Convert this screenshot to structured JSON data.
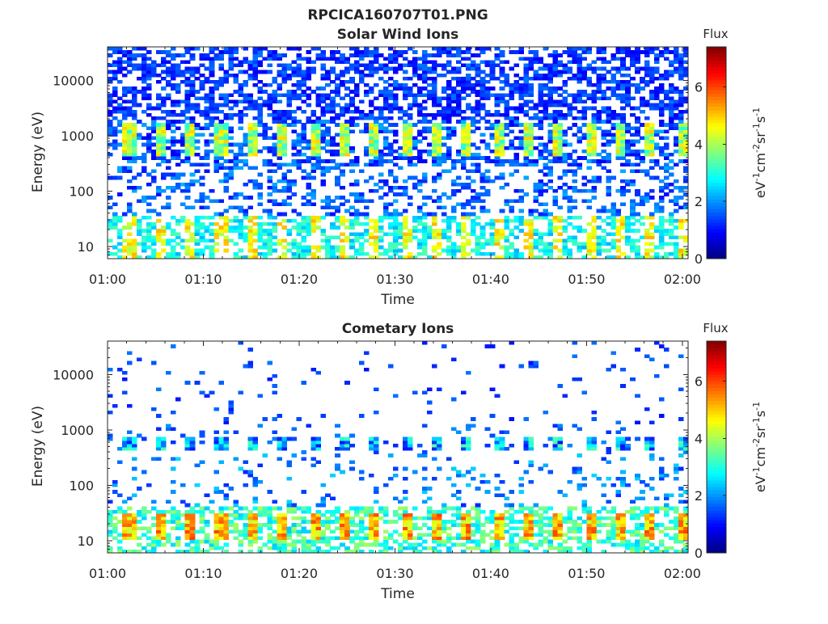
{
  "figure_title": "RPCICA160707T01.PNG",
  "chart_data": [
    {
      "type": "heatmap",
      "title": "Solar Wind Ions",
      "xlabel": "Time",
      "ylabel": "Energy (eV)",
      "x_ticks": [
        "01:00",
        "01:10",
        "01:20",
        "01:30",
        "01:40",
        "01:50",
        "02:00"
      ],
      "x_range": [
        "01:00",
        "02:00"
      ],
      "y_scale": "log",
      "y_ticks": [
        10,
        100,
        1000,
        10000
      ],
      "y_tick_labels": [
        "10",
        "100",
        "1000",
        "10000"
      ],
      "ylim": [
        6,
        40000
      ],
      "colorbar": {
        "title": "Flux",
        "label_parts": [
          "eV",
          "-1",
          "cm",
          "-2",
          "sr",
          "-1",
          "s",
          "-1"
        ],
        "range": [
          0,
          7.4
        ],
        "ticks": [
          0,
          2,
          4,
          6
        ],
        "colormap": "jet"
      },
      "pattern": {
        "cycle_minutes": 3.2,
        "peak_energy_bands_eV": [
          600,
          1000
        ],
        "peak_flux": 5.0,
        "background_high_energy_flux": 0.8,
        "low_energy_band_eV": [
          6,
          30
        ],
        "low_energy_flux": 3.0
      }
    },
    {
      "type": "heatmap",
      "title": "Cometary Ions",
      "xlabel": "Time",
      "ylabel": "Energy (eV)",
      "x_ticks": [
        "01:00",
        "01:10",
        "01:20",
        "01:30",
        "01:40",
        "01:50",
        "02:00"
      ],
      "x_range": [
        "01:00",
        "02:00"
      ],
      "y_scale": "log",
      "y_ticks": [
        10,
        100,
        1000,
        10000
      ],
      "y_tick_labels": [
        "10",
        "100",
        "1000",
        "10000"
      ],
      "ylim": [
        6,
        40000
      ],
      "colorbar": {
        "title": "Flux",
        "label_parts": [
          "eV",
          "-1",
          "cm",
          "-2",
          "sr",
          "-1",
          "s",
          "-1"
        ],
        "range": [
          0,
          7.4
        ],
        "ticks": [
          0,
          2,
          4,
          6
        ],
        "colormap": "jet"
      },
      "pattern": {
        "cycle_minutes": 3.2,
        "peak_energy_bands_eV": [
          500,
          600
        ],
        "peak_flux": 2.5,
        "low_energy_band_eV": [
          6,
          30
        ],
        "low_energy_flux": 5.5,
        "sparse_high_energy_flux": 1.0
      }
    }
  ]
}
